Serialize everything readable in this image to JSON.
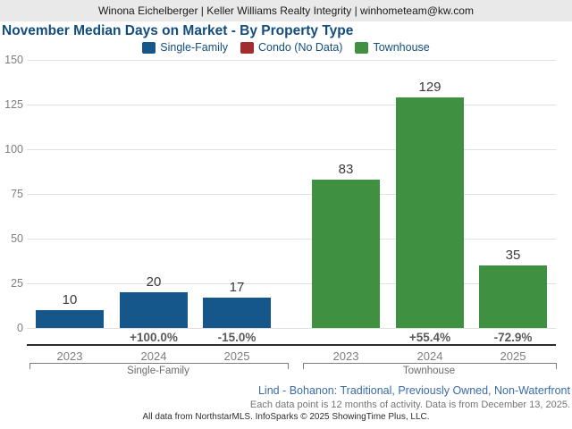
{
  "header": {
    "contact_line": "Winona Eichelberger | Keller Williams Realty Integrity | winhometeam@kw.com"
  },
  "title": "November Median Days on Market - By Property Type",
  "legend": {
    "items": [
      {
        "label": "Single-Family",
        "color": "#15568b"
      },
      {
        "label": "Condo (No Data)",
        "color": "#a32d2e"
      },
      {
        "label": "Townhouse",
        "color": "#3f9040"
      }
    ]
  },
  "chart_data": {
    "type": "bar",
    "title": "November Median Days on Market - By Property Type",
    "xlabel": "",
    "ylabel": "",
    "ylim": [
      0,
      150
    ],
    "ytick_step": 25,
    "yticks": [
      0,
      25,
      50,
      75,
      100,
      125,
      150
    ],
    "grid": true,
    "legend_position": "top",
    "groups": [
      {
        "label": "Single-Family",
        "color": "#15568b",
        "categories": [
          "2023",
          "2024",
          "2025"
        ],
        "values": [
          10,
          20,
          17
        ],
        "pct_change": [
          null,
          "+100.0%",
          "-15.0%"
        ]
      },
      {
        "label": "Townhouse",
        "color": "#3f9040",
        "categories": [
          "2023",
          "2024",
          "2025"
        ],
        "values": [
          83,
          129,
          35
        ],
        "pct_change": [
          null,
          "+55.4%",
          "-72.9%"
        ]
      }
    ],
    "no_data_series": [
      "Condo"
    ]
  },
  "footer": {
    "filter_line": "Lind - Bohanon: Traditional, Previously Owned, Non-Waterfront",
    "activity_line": "Each data point is 12 months of activity. Data is from December 13, 2025.",
    "attribution_line": "All data from NorthstarMLS. InfoSparks © 2025 ShowingTime Plus, LLC."
  }
}
